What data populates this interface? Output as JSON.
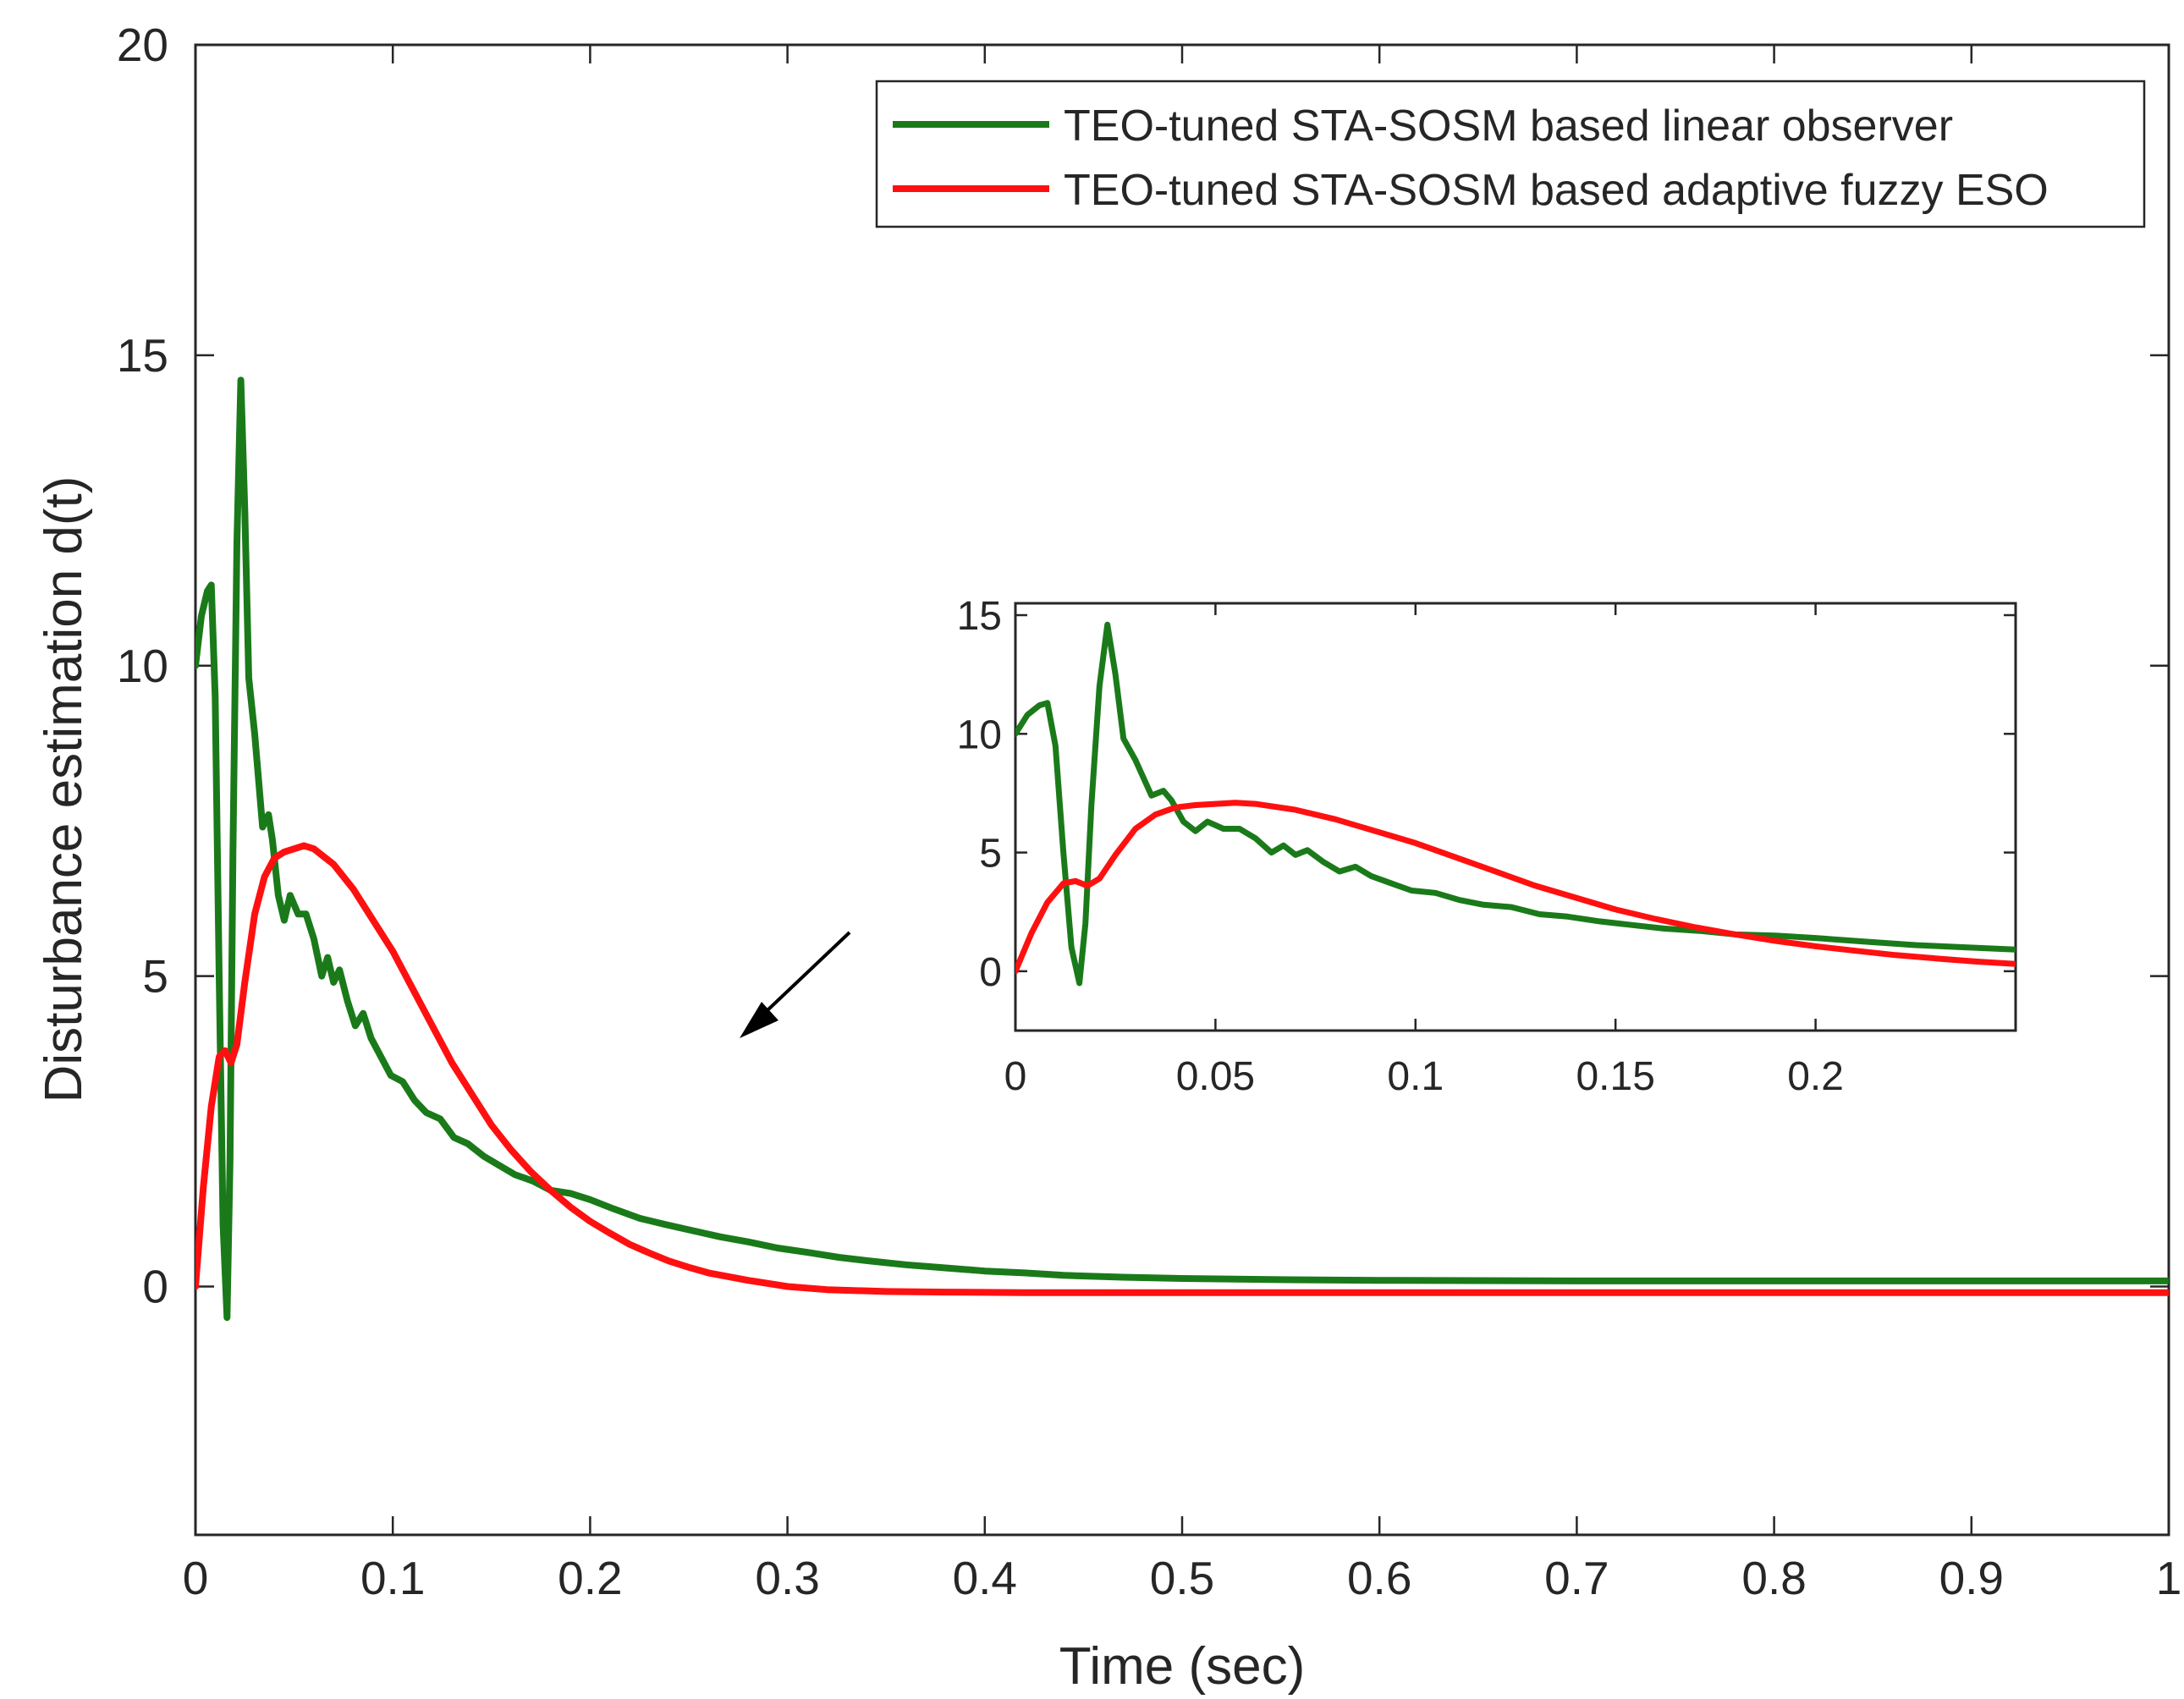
{
  "chart_data": {
    "type": "line",
    "title": "",
    "xlabel": "Time (sec)",
    "ylabel": "Disturbance estimation d(t)",
    "xlim": [
      0,
      1
    ],
    "ylim": [
      -4,
      20
    ],
    "xticks": [
      0,
      0.1,
      0.2,
      0.3,
      0.4,
      0.5,
      0.6,
      0.7,
      0.8,
      0.9,
      1
    ],
    "xtick_labels": [
      "0",
      "0.1",
      "0.2",
      "0.3",
      "0.4",
      "0.5",
      "0.6",
      "0.7",
      "0.8",
      "0.9",
      "1"
    ],
    "yticks": [
      0,
      5,
      10,
      15,
      20
    ],
    "ytick_labels": [
      "0",
      "5",
      "10",
      "15",
      "20"
    ],
    "grid": false,
    "legend_position": "top-right",
    "colors": {
      "green": "#1a7a1a",
      "red": "#ff1010",
      "axis": "#262626",
      "arrow": "#000000"
    },
    "series": [
      {
        "name": "TEO-tuned STA-SOSM based linear observer",
        "color": "#1a7a1a",
        "x": [
          0,
          0.003,
          0.006,
          0.008,
          0.01,
          0.012,
          0.014,
          0.016,
          0.0175,
          0.019,
          0.021,
          0.023,
          0.025,
          0.027,
          0.03,
          0.034,
          0.037,
          0.039,
          0.042,
          0.045,
          0.048,
          0.052,
          0.056,
          0.06,
          0.064,
          0.067,
          0.07,
          0.073,
          0.077,
          0.081,
          0.085,
          0.089,
          0.094,
          0.099,
          0.105,
          0.111,
          0.117,
          0.124,
          0.131,
          0.138,
          0.146,
          0.154,
          0.162,
          0.171,
          0.18,
          0.19,
          0.2,
          0.212,
          0.225,
          0.238,
          0.252,
          0.266,
          0.28,
          0.295,
          0.31,
          0.326,
          0.342,
          0.36,
          0.38,
          0.4,
          0.42,
          0.44,
          0.47,
          0.5,
          0.55,
          0.6,
          0.7,
          0.8,
          0.9,
          1.0
        ],
        "y": [
          10.0,
          10.8,
          11.2,
          11.3,
          9.5,
          5.0,
          1.0,
          -0.5,
          2.0,
          7.0,
          12.0,
          14.6,
          12.5,
          9.8,
          8.9,
          7.4,
          7.6,
          7.2,
          6.3,
          5.9,
          6.3,
          6.0,
          6.0,
          5.6,
          5.0,
          5.3,
          4.9,
          5.1,
          4.6,
          4.2,
          4.4,
          4.0,
          3.7,
          3.4,
          3.3,
          3.0,
          2.8,
          2.7,
          2.4,
          2.3,
          2.1,
          1.95,
          1.8,
          1.7,
          1.55,
          1.5,
          1.4,
          1.25,
          1.1,
          1.0,
          0.9,
          0.8,
          0.72,
          0.62,
          0.55,
          0.47,
          0.41,
          0.35,
          0.3,
          0.25,
          0.22,
          0.18,
          0.15,
          0.13,
          0.11,
          0.1,
          0.09,
          0.09,
          0.09,
          0.09
        ]
      },
      {
        "name": "TEO-tuned STA-SOSM based adaptive fuzzy ESO",
        "color": "#ff1010",
        "x": [
          0,
          0.004,
          0.008,
          0.012,
          0.015,
          0.018,
          0.021,
          0.025,
          0.03,
          0.035,
          0.04,
          0.045,
          0.05,
          0.055,
          0.06,
          0.07,
          0.08,
          0.09,
          0.1,
          0.11,
          0.12,
          0.13,
          0.14,
          0.15,
          0.16,
          0.17,
          0.18,
          0.19,
          0.2,
          0.21,
          0.22,
          0.23,
          0.24,
          0.25,
          0.26,
          0.28,
          0.3,
          0.32,
          0.35,
          0.38,
          0.42,
          0.45,
          0.5,
          0.6,
          0.7,
          0.8,
          0.9,
          1.0
        ],
        "y": [
          0.0,
          1.6,
          2.9,
          3.7,
          3.8,
          3.6,
          3.9,
          4.9,
          6.0,
          6.6,
          6.9,
          7.0,
          7.05,
          7.1,
          7.05,
          6.8,
          6.4,
          5.9,
          5.4,
          4.8,
          4.2,
          3.6,
          3.1,
          2.6,
          2.2,
          1.85,
          1.55,
          1.28,
          1.05,
          0.86,
          0.68,
          0.54,
          0.41,
          0.31,
          0.22,
          0.1,
          0.0,
          -0.05,
          -0.08,
          -0.09,
          -0.1,
          -0.1,
          -0.1,
          -0.1,
          -0.1,
          -0.1,
          -0.1,
          -0.1
        ]
      }
    ],
    "inset": {
      "xlim": [
        0,
        0.25
      ],
      "ylim": [
        -2.5,
        15.5
      ],
      "xticks": [
        0,
        0.05,
        0.1,
        0.15,
        0.2
      ],
      "xtick_labels": [
        "0",
        "0.05",
        "0.1",
        "0.15",
        "0.2"
      ],
      "yticks": [
        0,
        5,
        10,
        15
      ],
      "ytick_labels": [
        "0",
        "5",
        "10",
        "15"
      ]
    }
  }
}
